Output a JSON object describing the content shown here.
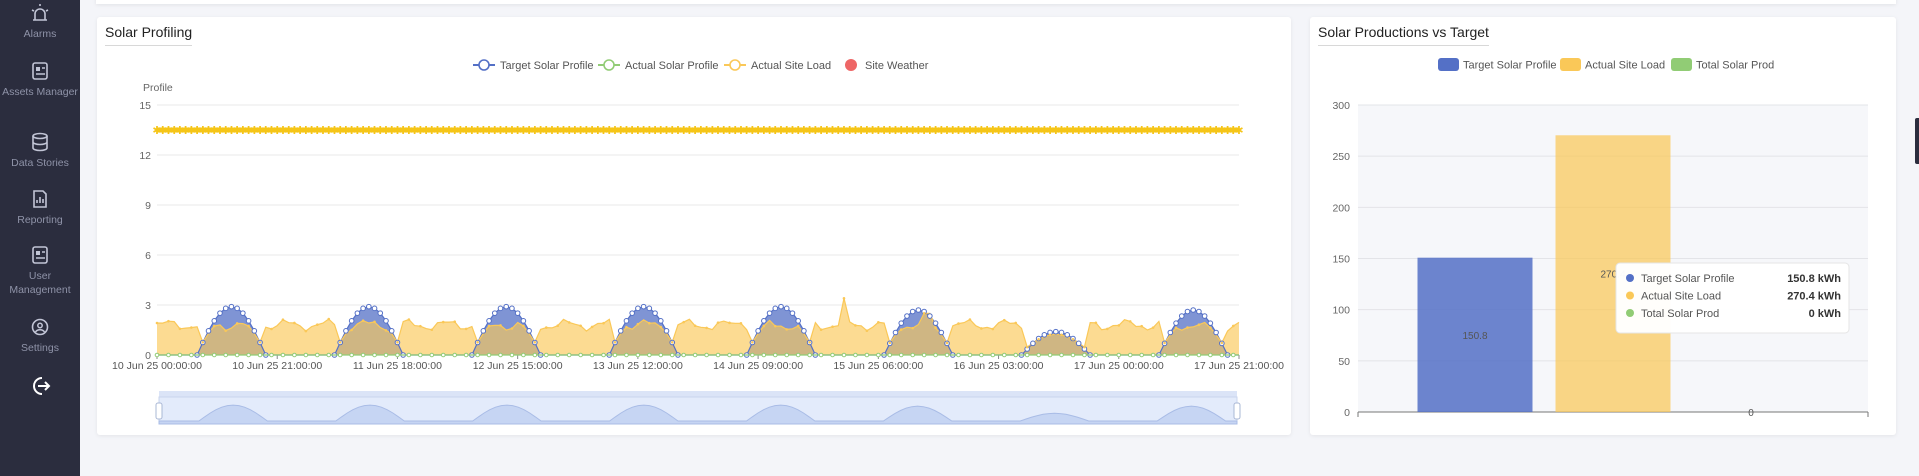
{
  "sidebar": {
    "items": [
      {
        "label": "Alarms",
        "icon": "alarm-icon"
      },
      {
        "label": "Assets Manager",
        "icon": "assets-icon"
      },
      {
        "label": "Data Stories",
        "icon": "database-icon"
      },
      {
        "label": "Reporting",
        "icon": "report-icon"
      },
      {
        "label": "User Management",
        "icon": "user-management-icon"
      },
      {
        "label": "Settings",
        "icon": "settings-icon"
      },
      {
        "label": "",
        "icon": "logout-icon"
      }
    ]
  },
  "colors": {
    "blue": "#5470c6",
    "green": "#91cc75",
    "yellow": "#fac858",
    "red": "#ee6666",
    "sidebar": "#2b2d3e"
  },
  "profiling": {
    "title": "Solar Profiling",
    "legend": [
      "Target Solar Profile",
      "Actual Solar Profile",
      "Actual Site Load",
      "Site Weather"
    ]
  },
  "production": {
    "title": "Solar Productions vs Target",
    "legend": [
      "Target Solar Profile",
      "Actual Site Load",
      "Total Solar Prod"
    ],
    "tooltip": [
      {
        "label": "Target Solar Profile",
        "value": "150.8 kWh"
      },
      {
        "label": "Actual Site Load",
        "value": "270.4 kWh"
      },
      {
        "label": "Total Solar Prod",
        "value": "0 kWh"
      }
    ]
  },
  "chart_data": [
    {
      "type": "line",
      "title": "Solar Profiling",
      "ylabel": "Profile",
      "xlabel": "",
      "ylim": [
        0,
        15
      ],
      "yticks": [
        0,
        3,
        6,
        9,
        12,
        15
      ],
      "x_tick_labels": [
        "10 Jun 25 00:00:00",
        "10 Jun 25 21:00:00",
        "11 Jun 25 18:00:00",
        "12 Jun 25 15:00:00",
        "13 Jun 25 12:00:00",
        "14 Jun 25 09:00:00",
        "15 Jun 25 06:00:00",
        "16 Jun 25 03:00:00",
        "17 Jun 25 00:00:00",
        "17 Jun 25 21:00:00"
      ],
      "x_range_hours": [
        0,
        189
      ],
      "grid": true,
      "legend_position": "top-center",
      "series": [
        {
          "name": "Target Solar Profile",
          "color": "#5470c6",
          "area": true,
          "daily_peaks": [
            2.9,
            2.9,
            2.9,
            2.9,
            2.9,
            2.7,
            1.4,
            2.7
          ],
          "daytime_hours": [
            7,
            19
          ]
        },
        {
          "name": "Actual Solar Profile",
          "color": "#91cc75",
          "area": false,
          "constant": 0
        },
        {
          "name": "Actual Site Load",
          "color": "#fac858",
          "area": true,
          "baseline": 1.8,
          "spikes": [
            {
              "x": 101.5,
              "y": 1.9
            },
            {
              "x": 120,
              "y": 3.4
            },
            {
              "x": 134.5,
              "y": 2.5
            }
          ]
        },
        {
          "name": "Site Weather",
          "color": "#fac858",
          "area": false,
          "constant": 13.5
        }
      ]
    },
    {
      "type": "bar",
      "title": "Solar Productions vs Target",
      "categories": [
        "Target Solar Profile",
        "Actual Site Load",
        "Total Solar Prod"
      ],
      "values": [
        150.8,
        270.4,
        0
      ],
      "data_labels": [
        "150.8",
        "270.4",
        "0"
      ],
      "ylim": [
        0,
        300
      ],
      "yticks": [
        0,
        50,
        100,
        150,
        200,
        250,
        300
      ],
      "grid": true,
      "legend_position": "top-center",
      "colors": [
        "#5470c6",
        "#fac858",
        "#91cc75"
      ]
    }
  ]
}
